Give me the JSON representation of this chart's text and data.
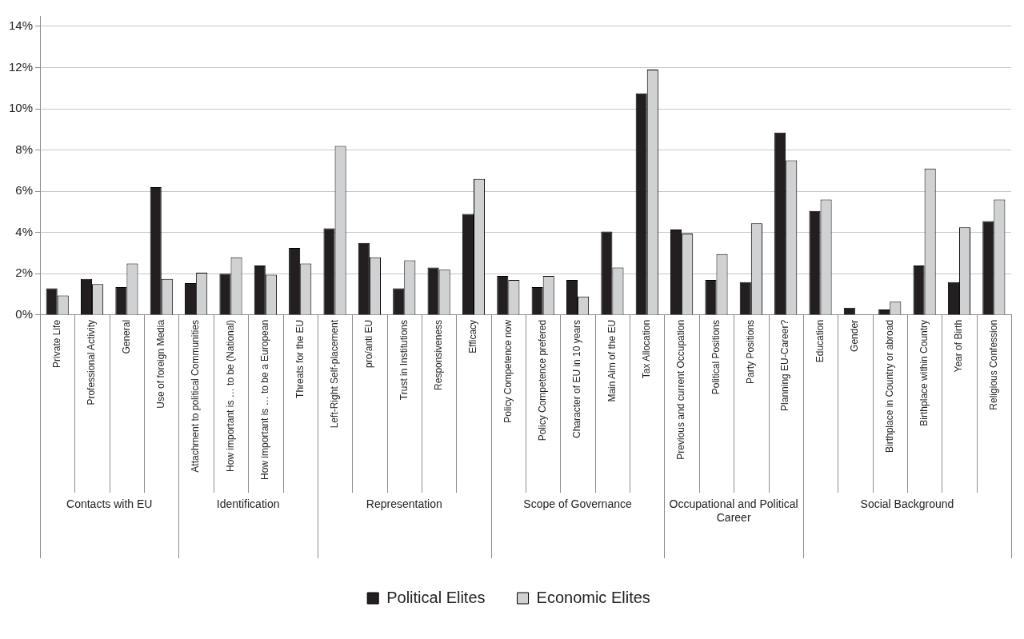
{
  "chart_data": {
    "type": "bar",
    "categories": [
      "Private Life",
      "Professional Activity",
      "General",
      "Use of foreign Media",
      "Attachment to political Communities",
      "How important is … to be (National)",
      "How important is … to be a European",
      "Threats for the EU",
      "Left-Right Self-placement",
      "pro/anti EU",
      "Trust in Institutions",
      "Responsiveness",
      "Efficacy",
      "Policy Competence now",
      "Policy Competence prefered",
      "Character of EU in 10 years",
      "Main Aim of the EU",
      "Tax Allocation",
      "Previous and current Occupation",
      "Political Positions",
      "Party Positions",
      "Planning EU-Career?",
      "Education",
      "Gender",
      "Birthplace in Country or abroad",
      "Birthplace within Country",
      "Year of Birth",
      "Religious Confession"
    ],
    "series": [
      {
        "name": "Political Elites",
        "color": "#231f20",
        "values": [
          1.3,
          1.75,
          1.35,
          6.2,
          1.55,
          2.0,
          2.4,
          3.25,
          4.2,
          3.5,
          1.3,
          2.3,
          4.9,
          1.9,
          1.35,
          1.7,
          4.05,
          10.75,
          4.15,
          1.7,
          1.6,
          8.85,
          5.05,
          0.35,
          0.27,
          2.4,
          1.6,
          4.55
        ]
      },
      {
        "name": "Economic Elites",
        "color": "#d0d1d3",
        "values": [
          0.95,
          1.5,
          2.5,
          1.75,
          2.05,
          2.8,
          1.95,
          2.5,
          8.2,
          2.8,
          2.65,
          2.2,
          6.6,
          1.7,
          1.9,
          0.9,
          2.3,
          11.9,
          3.95,
          2.95,
          4.45,
          7.5,
          5.6,
          null,
          0.65,
          7.1,
          4.25,
          5.6
        ]
      }
    ],
    "ylim": [
      0,
      14.5
    ],
    "yticks": [
      {
        "value": 0,
        "label": "0%"
      },
      {
        "value": 2,
        "label": "2%"
      },
      {
        "value": 4,
        "label": "4%"
      },
      {
        "value": 6,
        "label": "6%"
      },
      {
        "value": 8,
        "label": "8%"
      },
      {
        "value": 10,
        "label": "10%"
      },
      {
        "value": 12,
        "label": "12%"
      },
      {
        "value": 14,
        "label": "14%"
      }
    ],
    "grid": "y",
    "legend": "bottom",
    "annotations": [
      "Contacts with EU",
      "Identification",
      "Representation",
      "Scope of Governance",
      "Occupational and Political Career",
      "Social Background"
    ]
  }
}
